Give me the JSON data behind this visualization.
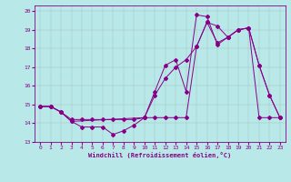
{
  "xlabel": "Windchill (Refroidissement éolien,°C)",
  "background_color": "#b8e8e8",
  "line_color": "#880088",
  "xlim": [
    -0.5,
    23.5
  ],
  "ylim": [
    13.0,
    20.3
  ],
  "xticks": [
    0,
    1,
    2,
    3,
    4,
    5,
    6,
    7,
    8,
    9,
    10,
    11,
    12,
    13,
    14,
    15,
    16,
    17,
    18,
    19,
    20,
    21,
    22,
    23
  ],
  "yticks": [
    13,
    14,
    15,
    16,
    17,
    18,
    19,
    20
  ],
  "line1_x": [
    0,
    1,
    2,
    3,
    4,
    5,
    6,
    7,
    8,
    9,
    10,
    11,
    12,
    13,
    14,
    15,
    16,
    17,
    18,
    19,
    20,
    21,
    22,
    23
  ],
  "line1_y": [
    14.9,
    14.9,
    14.6,
    14.1,
    13.8,
    13.8,
    13.8,
    13.4,
    13.6,
    13.9,
    14.3,
    15.7,
    17.1,
    17.4,
    15.7,
    19.8,
    19.7,
    18.2,
    18.6,
    19.0,
    19.1,
    17.1,
    15.5,
    14.3
  ],
  "line2_x": [
    0,
    1,
    2,
    3,
    4,
    5,
    6,
    7,
    8,
    9,
    10,
    11,
    12,
    13,
    14,
    15,
    16,
    17,
    18,
    19,
    20,
    21,
    22,
    23
  ],
  "line2_y": [
    14.9,
    14.9,
    14.6,
    14.2,
    14.2,
    14.2,
    14.2,
    14.2,
    14.2,
    14.2,
    14.3,
    14.3,
    14.3,
    14.3,
    14.3,
    18.1,
    19.4,
    18.3,
    18.6,
    19.0,
    19.1,
    14.3,
    14.3,
    14.3
  ],
  "line3_x": [
    0,
    1,
    2,
    3,
    10,
    11,
    12,
    13,
    14,
    15,
    16,
    17,
    18,
    19,
    20,
    21,
    22,
    23
  ],
  "line3_y": [
    14.9,
    14.9,
    14.6,
    14.1,
    14.3,
    15.5,
    16.4,
    17.0,
    17.4,
    18.1,
    19.4,
    19.2,
    18.6,
    19.0,
    19.1,
    17.1,
    15.5,
    14.3
  ],
  "grid_color": "#999999",
  "marker": "D",
  "markersize": 2.0,
  "linewidth": 0.7
}
